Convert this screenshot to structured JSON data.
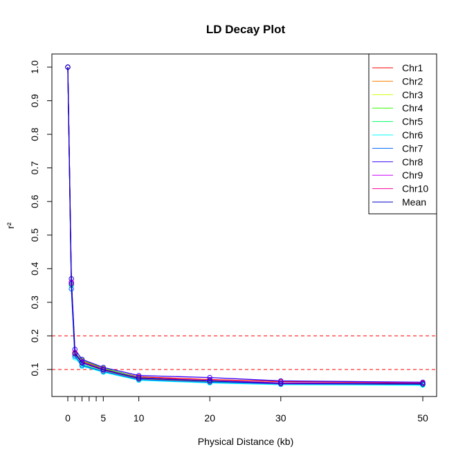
{
  "chart_data": {
    "type": "line",
    "title": "LD Decay Plot",
    "xlabel": "Physical Distance (kb)",
    "ylabel": "r²",
    "xlim": [
      -4.5,
      50
    ],
    "ylim": [
      0.025,
      1.04
    ],
    "x_ticks": [
      0,
      1,
      2,
      3,
      4,
      5,
      10,
      20,
      30,
      50
    ],
    "x_tick_labels": [
      "0",
      "",
      "",
      "",
      "",
      "5",
      "10",
      "20",
      "30",
      "50"
    ],
    "y_ticks": [
      0.1,
      0.2,
      0.3,
      0.4,
      0.5,
      0.6,
      0.7,
      0.8,
      0.9,
      1.0
    ],
    "y_tick_labels": [
      "0.1",
      "0.2",
      "0.3",
      "0.4",
      "0.5",
      "0.6",
      "0.7",
      "0.8",
      "0.9",
      "1.0"
    ],
    "hlines": [
      {
        "y": 0.2,
        "color": "#FF0000",
        "style": "dashed"
      },
      {
        "y": 0.1,
        "color": "#FF0000",
        "style": "dashed"
      }
    ],
    "legend_position": "top-right",
    "grid": false,
    "x": [
      0,
      0.5,
      1,
      2,
      5,
      10,
      20,
      30,
      50
    ],
    "series": [
      {
        "name": "Chr1",
        "color": "#FF0000",
        "values": [
          1.0,
          0.36,
          0.15,
          0.125,
          0.102,
          0.078,
          0.07,
          0.064,
          0.06
        ]
      },
      {
        "name": "Chr2",
        "color": "#FF8000",
        "values": [
          1.0,
          0.36,
          0.145,
          0.12,
          0.098,
          0.072,
          0.064,
          0.058,
          0.055
        ]
      },
      {
        "name": "Chr3",
        "color": "#CCFF00",
        "values": [
          1.0,
          0.35,
          0.148,
          0.123,
          0.1,
          0.075,
          0.066,
          0.06,
          0.056
        ]
      },
      {
        "name": "Chr4",
        "color": "#33FF00",
        "values": [
          1.0,
          0.37,
          0.15,
          0.128,
          0.104,
          0.076,
          0.065,
          0.057,
          0.054
        ]
      },
      {
        "name": "Chr5",
        "color": "#00FF66",
        "values": [
          1.0,
          0.35,
          0.14,
          0.115,
          0.095,
          0.07,
          0.062,
          0.058,
          0.055
        ]
      },
      {
        "name": "Chr6",
        "color": "#00FFFF",
        "values": [
          1.0,
          0.34,
          0.135,
          0.11,
          0.092,
          0.068,
          0.06,
          0.055,
          0.053
        ]
      },
      {
        "name": "Chr7",
        "color": "#0066FF",
        "values": [
          1.0,
          0.34,
          0.14,
          0.112,
          0.094,
          0.07,
          0.062,
          0.057,
          0.056
        ]
      },
      {
        "name": "Chr8",
        "color": "#3300FF",
        "values": [
          1.0,
          0.37,
          0.16,
          0.13,
          0.106,
          0.082,
          0.076,
          0.066,
          0.062
        ]
      },
      {
        "name": "Chr9",
        "color": "#CC00FF",
        "values": [
          1.0,
          0.36,
          0.15,
          0.122,
          0.1,
          0.075,
          0.067,
          0.06,
          0.058
        ]
      },
      {
        "name": "Chr10",
        "color": "#FF0099",
        "values": [
          1.0,
          0.355,
          0.15,
          0.12,
          0.098,
          0.074,
          0.066,
          0.058,
          0.057
        ]
      },
      {
        "name": "Mean",
        "color": "#0000CC",
        "values": [
          1.0,
          0.355,
          0.147,
          0.12,
          0.099,
          0.074,
          0.066,
          0.059,
          0.057
        ]
      }
    ]
  }
}
